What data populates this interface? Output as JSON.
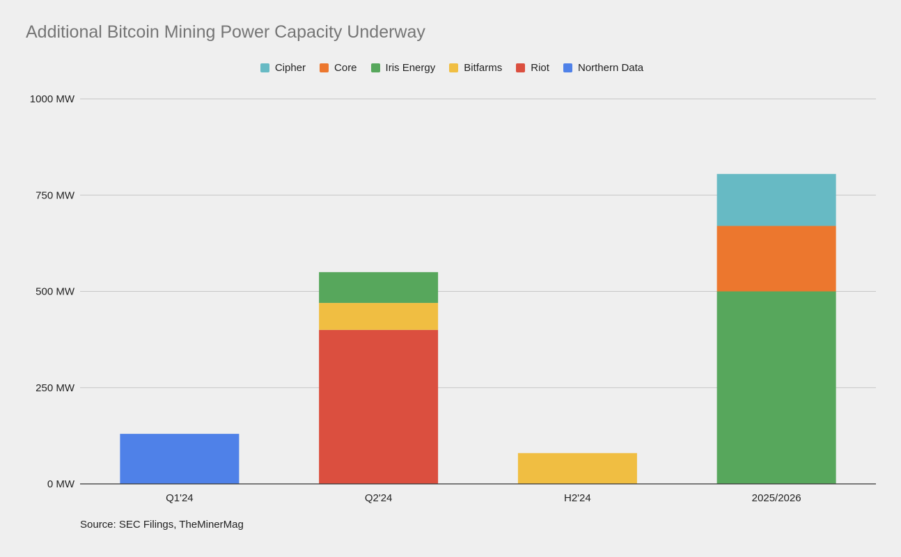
{
  "chart_data": {
    "type": "bar",
    "stacked": true,
    "title": "Additional Bitcoin Mining Power Capacity Underway",
    "xlabel": "",
    "ylabel": "",
    "ylim": [
      0,
      1000
    ],
    "yticks": [
      "0 MW",
      "250 MW",
      "500 MW",
      "750 MW",
      "1000 MW"
    ],
    "ytick_values": [
      0,
      250,
      500,
      750,
      1000
    ],
    "grid": true,
    "legend_position": "top",
    "categories": [
      "Q1'24",
      "Q2'24",
      "H2'24",
      "2025/2026"
    ],
    "series": [
      {
        "name": "Northern Data",
        "color": "#4f81e8",
        "values": [
          130,
          0,
          0,
          0
        ]
      },
      {
        "name": "Riot",
        "color": "#db4f3f",
        "values": [
          0,
          400,
          0,
          0
        ]
      },
      {
        "name": "Bitfarms",
        "color": "#f0be42",
        "values": [
          0,
          70,
          80,
          0
        ]
      },
      {
        "name": "Iris Energy",
        "color": "#57a75c",
        "values": [
          0,
          80,
          0,
          500
        ]
      },
      {
        "name": "Core",
        "color": "#ec772e",
        "values": [
          0,
          0,
          0,
          170
        ]
      },
      {
        "name": "Cipher",
        "color": "#67bac4",
        "values": [
          0,
          0,
          0,
          135
        ]
      }
    ],
    "legend_order": [
      "Cipher",
      "Core",
      "Iris Energy",
      "Bitfarms",
      "Riot",
      "Northern Data"
    ],
    "source": "Source: SEC Filings, TheMinerMag"
  }
}
